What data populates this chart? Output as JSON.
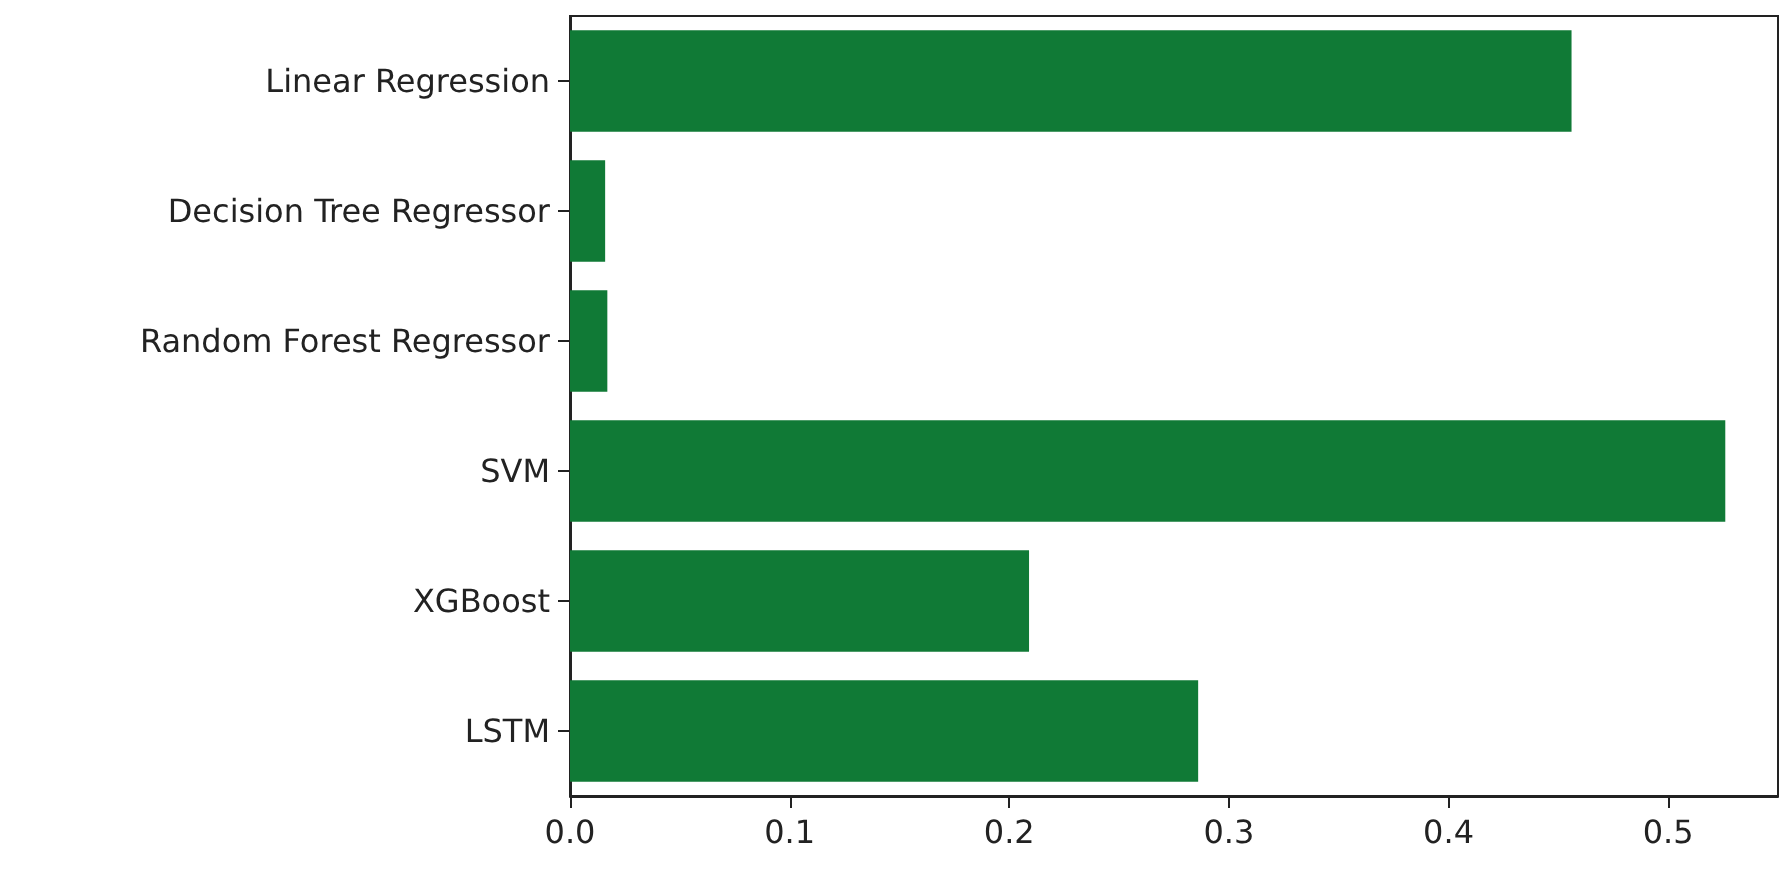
{
  "chart_data": {
    "type": "bar",
    "orientation": "horizontal",
    "categories": [
      "Linear Regression",
      "Decision Tree Regressor",
      "Random Forest Regressor",
      "SVM",
      "XGBoost",
      "LSTM"
    ],
    "values": [
      0.456,
      0.016,
      0.017,
      0.526,
      0.209,
      0.286
    ],
    "color": "#107a36",
    "xlim": [
      0,
      0.55
    ],
    "xticks": [
      {
        "value": 0,
        "label": "0.0"
      },
      {
        "value": 0.1,
        "label": "0.1"
      },
      {
        "value": 0.2,
        "label": "0.2"
      },
      {
        "value": 0.3,
        "label": "0.3"
      },
      {
        "value": 0.4,
        "label": "0.4"
      },
      {
        "value": 0.5,
        "label": "0.5"
      }
    ],
    "grid": false
  }
}
